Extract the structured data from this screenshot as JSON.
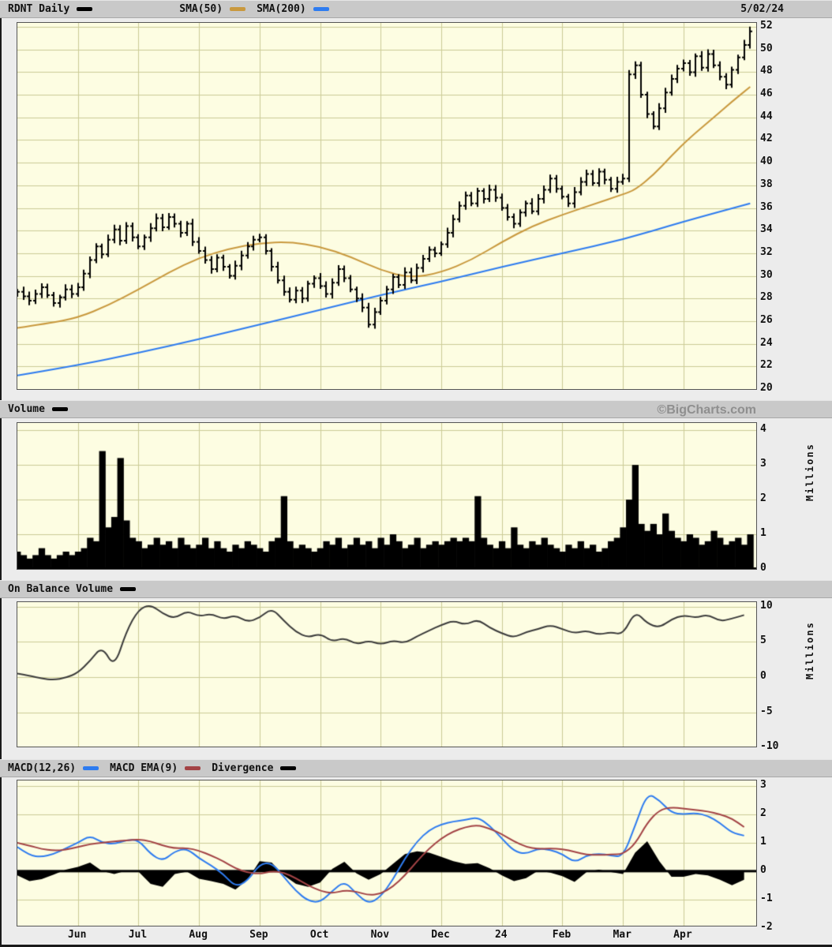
{
  "page": {
    "date": "5/02/24",
    "watermark": "©BigCharts.com"
  },
  "panels": {
    "price": {
      "legend": [
        {
          "label": "RDNT Daily",
          "color": "#000000"
        },
        {
          "label": "SMA(50)",
          "color": "#c9993e"
        },
        {
          "label": "SMA(200)",
          "color": "#2e7cf0"
        }
      ]
    },
    "volume": {
      "label": "Volume",
      "swatch": "#000000",
      "unit": "Millions"
    },
    "obv": {
      "label": "On Balance Volume",
      "swatch": "#000000",
      "unit": "Millions"
    },
    "macd": {
      "legend": [
        {
          "label": "MACD(12,26)",
          "color": "#2e7cf0"
        },
        {
          "label": "MACD EMA(9)",
          "color": "#a34345"
        },
        {
          "label": "Divergence",
          "color": "#000000"
        }
      ]
    }
  },
  "chart_data": [
    {
      "id": "price",
      "type": "ohlc",
      "symbol": "RDNT",
      "interval": "Daily",
      "last_date": "5/02/24",
      "x_axis": {
        "start": "May 2023",
        "end": "May 2024",
        "tick_labels": [
          "Jun",
          "Jul",
          "Aug",
          "Sep",
          "Oct",
          "Nov",
          "Dec",
          "24",
          "Feb",
          "Mar",
          "Apr"
        ],
        "tick_positions": [
          1,
          2,
          3,
          4,
          5,
          6,
          7,
          8,
          9,
          10,
          11
        ],
        "t_max": 12.2
      },
      "ylim": [
        20,
        52
      ],
      "yticks": [
        52,
        50,
        48,
        46,
        44,
        42,
        40,
        38,
        36,
        34,
        32,
        30,
        28,
        26,
        24,
        22,
        20
      ],
      "t_start": 0,
      "t_step": 0.1,
      "close": [
        28.6,
        28.2,
        27.8,
        28.4,
        29.0,
        28.3,
        27.6,
        28.1,
        28.8,
        28.4,
        29.0,
        30.2,
        31.4,
        32.6,
        31.9,
        33.2,
        34.1,
        33.1,
        34.4,
        33.4,
        32.6,
        33.4,
        34.2,
        35.1,
        34.3,
        35.2,
        34.6,
        33.8,
        34.6,
        33.0,
        32.2,
        31.4,
        30.6,
        31.6,
        30.8,
        30.0,
        30.9,
        31.8,
        32.6,
        33.2,
        33.4,
        32.2,
        30.8,
        29.6,
        28.6,
        27.9,
        28.7,
        28.0,
        29.3,
        29.8,
        29.1,
        28.4,
        29.4,
        30.6,
        29.8,
        28.8,
        28.0,
        27.2,
        25.7,
        26.8,
        27.8,
        28.8,
        29.9,
        29.2,
        30.3,
        29.6,
        30.7,
        31.5,
        32.3,
        32.0,
        32.8,
        33.8,
        35.0,
        36.2,
        37.1,
        36.4,
        37.5,
        36.8,
        37.6,
        36.9,
        36.0,
        35.2,
        34.6,
        35.6,
        36.4,
        35.7,
        36.8,
        37.6,
        38.6,
        37.7,
        37.0,
        36.4,
        37.4,
        38.3,
        39.0,
        38.2,
        39.2,
        38.5,
        37.7,
        38.3,
        38.6,
        47.8,
        48.6,
        46.0,
        44.3,
        43.2,
        44.8,
        46.2,
        47.4,
        48.3,
        48.8,
        48.0,
        49.4,
        48.4,
        49.6,
        48.6,
        47.6,
        46.9,
        48.2,
        49.3,
        50.4,
        51.6
      ],
      "sma50": {
        "name": "SMA(50)",
        "color": "#c9993e",
        "points": [
          [
            0,
            25.4
          ],
          [
            0.5,
            25.8
          ],
          [
            1,
            26.3
          ],
          [
            1.5,
            27.4
          ],
          [
            2,
            28.8
          ],
          [
            2.5,
            30.3
          ],
          [
            3,
            31.6
          ],
          [
            3.5,
            32.4
          ],
          [
            4,
            32.9
          ],
          [
            4.5,
            33.0
          ],
          [
            5,
            32.6
          ],
          [
            5.5,
            31.7
          ],
          [
            6,
            30.5
          ],
          [
            6.5,
            29.8
          ],
          [
            7,
            30.3
          ],
          [
            7.5,
            31.4
          ],
          [
            8,
            33.0
          ],
          [
            8.5,
            34.4
          ],
          [
            9,
            35.4
          ],
          [
            9.5,
            36.3
          ],
          [
            10,
            37.2
          ],
          [
            10.2,
            37.6
          ],
          [
            10.5,
            38.9
          ],
          [
            10.8,
            40.6
          ],
          [
            11.1,
            42.2
          ],
          [
            11.5,
            44.0
          ],
          [
            11.8,
            45.4
          ],
          [
            12.1,
            46.7
          ]
        ]
      },
      "sma200": {
        "name": "SMA(200)",
        "color": "#2e7cf0",
        "points": [
          [
            0,
            21.2
          ],
          [
            1,
            22.1
          ],
          [
            2,
            23.2
          ],
          [
            3,
            24.4
          ],
          [
            4,
            25.7
          ],
          [
            5,
            27.0
          ],
          [
            6,
            28.3
          ],
          [
            7,
            29.5
          ],
          [
            8,
            30.8
          ],
          [
            9,
            32.0
          ],
          [
            10,
            33.2
          ],
          [
            11,
            34.8
          ],
          [
            12.1,
            36.4
          ]
        ]
      }
    },
    {
      "id": "volume",
      "type": "bar",
      "title": "Volume",
      "ylabel": "Millions",
      "ylim": [
        0,
        4
      ],
      "yticks": [
        4,
        3,
        2,
        1,
        0
      ],
      "t_start": 0,
      "t_step": 0.1,
      "color": "#000000",
      "values": [
        0.5,
        0.4,
        0.3,
        0.4,
        0.6,
        0.4,
        0.3,
        0.4,
        0.5,
        0.4,
        0.5,
        0.6,
        0.9,
        0.8,
        3.4,
        1.2,
        1.5,
        3.2,
        1.4,
        0.9,
        0.8,
        0.6,
        0.7,
        0.9,
        0.7,
        0.8,
        0.6,
        0.9,
        0.7,
        0.6,
        0.7,
        0.9,
        0.6,
        0.8,
        0.6,
        0.5,
        0.7,
        0.6,
        0.8,
        0.7,
        0.6,
        0.5,
        0.8,
        0.9,
        2.1,
        0.8,
        0.6,
        0.7,
        0.6,
        0.5,
        0.6,
        0.8,
        0.7,
        0.9,
        0.6,
        0.7,
        0.9,
        0.7,
        0.8,
        0.6,
        0.9,
        0.7,
        1.0,
        0.8,
        0.6,
        0.7,
        0.9,
        0.6,
        0.7,
        0.8,
        0.7,
        0.8,
        0.9,
        0.8,
        0.9,
        0.8,
        2.1,
        0.9,
        0.7,
        0.6,
        0.8,
        0.6,
        1.2,
        0.7,
        0.6,
        0.8,
        0.7,
        0.9,
        0.7,
        0.6,
        0.5,
        0.7,
        0.6,
        0.8,
        0.6,
        0.7,
        0.5,
        0.6,
        0.8,
        0.9,
        1.2,
        2.0,
        3.0,
        1.3,
        1.1,
        1.3,
        1.0,
        1.6,
        1.1,
        0.9,
        0.8,
        1.0,
        0.9,
        0.7,
        0.8,
        1.1,
        0.9,
        0.7,
        0.8,
        0.9,
        0.7,
        1.0
      ]
    },
    {
      "id": "obv",
      "type": "line",
      "title": "On Balance Volume",
      "ylabel": "Millions",
      "ylim": [
        -10,
        10
      ],
      "yticks": [
        10,
        5,
        0,
        -5,
        -10
      ],
      "t_start": 0,
      "t_step": 0.2,
      "color": "#3c3c3c",
      "values": [
        0.5,
        0.2,
        -0.2,
        -0.4,
        -0.1,
        0.6,
        2.3,
        4.4,
        1.3,
        6.5,
        9.6,
        10.3,
        9.0,
        8.3,
        9.4,
        8.6,
        9.0,
        8.2,
        8.8,
        7.8,
        8.4,
        9.8,
        8.0,
        6.4,
        5.6,
        6.2,
        5.0,
        5.6,
        4.6,
        5.2,
        4.6,
        5.2,
        4.8,
        5.8,
        6.6,
        7.4,
        8.0,
        7.4,
        8.2,
        7.0,
        6.2,
        5.6,
        6.4,
        6.8,
        7.4,
        6.8,
        6.2,
        6.6,
        6.0,
        6.4,
        6.0,
        9.4,
        7.6,
        7.0,
        8.2,
        8.8,
        8.4,
        8.9,
        7.9,
        8.3,
        8.8
      ]
    },
    {
      "id": "macd",
      "type": "line+histogram",
      "title": "MACD",
      "ylim": [
        -2,
        3
      ],
      "yticks": [
        3,
        2,
        1,
        0,
        -1,
        -2
      ],
      "t_start": 0,
      "t_step": 0.2,
      "series": [
        {
          "name": "MACD(12,26)",
          "color": "#2e7cf0",
          "values": [
            0.85,
            0.55,
            0.5,
            0.6,
            0.8,
            1.0,
            1.25,
            1.0,
            0.95,
            1.1,
            1.1,
            0.6,
            0.35,
            0.7,
            0.8,
            0.45,
            0.2,
            -0.1,
            -0.55,
            -0.35,
            0.25,
            0.3,
            -0.2,
            -0.7,
            -1.05,
            -1.1,
            -0.7,
            -0.35,
            -0.8,
            -1.15,
            -0.9,
            -0.3,
            0.45,
            1.05,
            1.45,
            1.65,
            1.75,
            1.8,
            1.9,
            1.6,
            1.15,
            0.7,
            0.6,
            0.8,
            0.75,
            0.6,
            0.3,
            0.55,
            0.62,
            0.55,
            0.5,
            1.6,
            2.75,
            2.5,
            2.05,
            2.0,
            2.05,
            1.95,
            1.7,
            1.35,
            1.25
          ]
        },
        {
          "name": "MACD EMA(9)",
          "color": "#a34345",
          "values": [
            1.0,
            0.9,
            0.78,
            0.72,
            0.75,
            0.85,
            0.95,
            1.0,
            1.05,
            1.08,
            1.12,
            1.05,
            0.9,
            0.8,
            0.82,
            0.72,
            0.55,
            0.35,
            0.1,
            -0.05,
            -0.1,
            0.0,
            -0.05,
            -0.25,
            -0.5,
            -0.7,
            -0.78,
            -0.68,
            -0.72,
            -0.85,
            -0.8,
            -0.55,
            -0.15,
            0.35,
            0.8,
            1.15,
            1.4,
            1.55,
            1.62,
            1.5,
            1.3,
            1.05,
            0.85,
            0.78,
            0.8,
            0.78,
            0.68,
            0.58,
            0.57,
            0.58,
            0.6,
            0.95,
            1.7,
            2.15,
            2.25,
            2.2,
            2.15,
            2.1,
            2.0,
            1.85,
            1.55
          ]
        }
      ],
      "histogram": {
        "name": "Divergence",
        "color": "#000000",
        "derived": "MACD minus EMA"
      }
    }
  ]
}
